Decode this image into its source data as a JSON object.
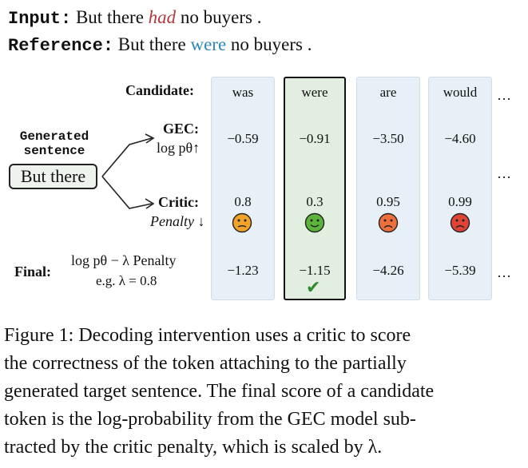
{
  "header": {
    "input_label": "Input:",
    "input_before": "But there",
    "input_highlight": "had",
    "input_after": "no buyers .",
    "reference_label": "Reference:",
    "reference_before": "But there",
    "reference_highlight": "were",
    "reference_after": "no buyers ."
  },
  "diagram": {
    "candidate_label": "Candidate:",
    "generated_label_1": "Generated",
    "generated_label_2": "sentence",
    "generated_sentence": "But there",
    "gec_label": "GEC:",
    "gec_sublabel": "log pθ↑",
    "critic_label": "Critic:",
    "critic_sublabel": "Penalty ↓",
    "final_label": "Final:",
    "final_formula": "log pθ − λ Penalty",
    "final_example": "e.g. λ = 0.8",
    "ellipsis": "…",
    "candidates": [
      {
        "token": "was",
        "gec": "−0.59",
        "critic": "0.8",
        "final": "−1.23",
        "face": "neutral-face-icon",
        "face_color": "#f0a22a"
      },
      {
        "token": "were",
        "gec": "−0.91",
        "critic": "0.3",
        "final": "−1.15",
        "face": "smile-face-icon",
        "face_color": "#5cb53b"
      },
      {
        "token": "are",
        "gec": "−3.50",
        "critic": "0.95",
        "final": "−4.26",
        "face": "frown-face-icon",
        "face_color": "#ec6f3c"
      },
      {
        "token": "would",
        "gec": "−4.60",
        "critic": "0.99",
        "final": "−5.39",
        "face": "frown-face-icon",
        "face_color": "#e04436"
      }
    ],
    "selected_mark": "✔",
    "colors": {
      "input_highlight": "#b03a3f",
      "reference_highlight": "#2e86b8",
      "check": "#2f8a2f"
    }
  },
  "caption": {
    "line1": "Figure 1: Decoding intervention uses a critic to score",
    "line2": "the correctness of the token attaching to the partially",
    "line3": "generated target sentence. The final score of a candidate",
    "line4": "token is the log-probability from the GEC model sub-",
    "line5": "tracted by the critic penalty, which is scaled by λ."
  }
}
